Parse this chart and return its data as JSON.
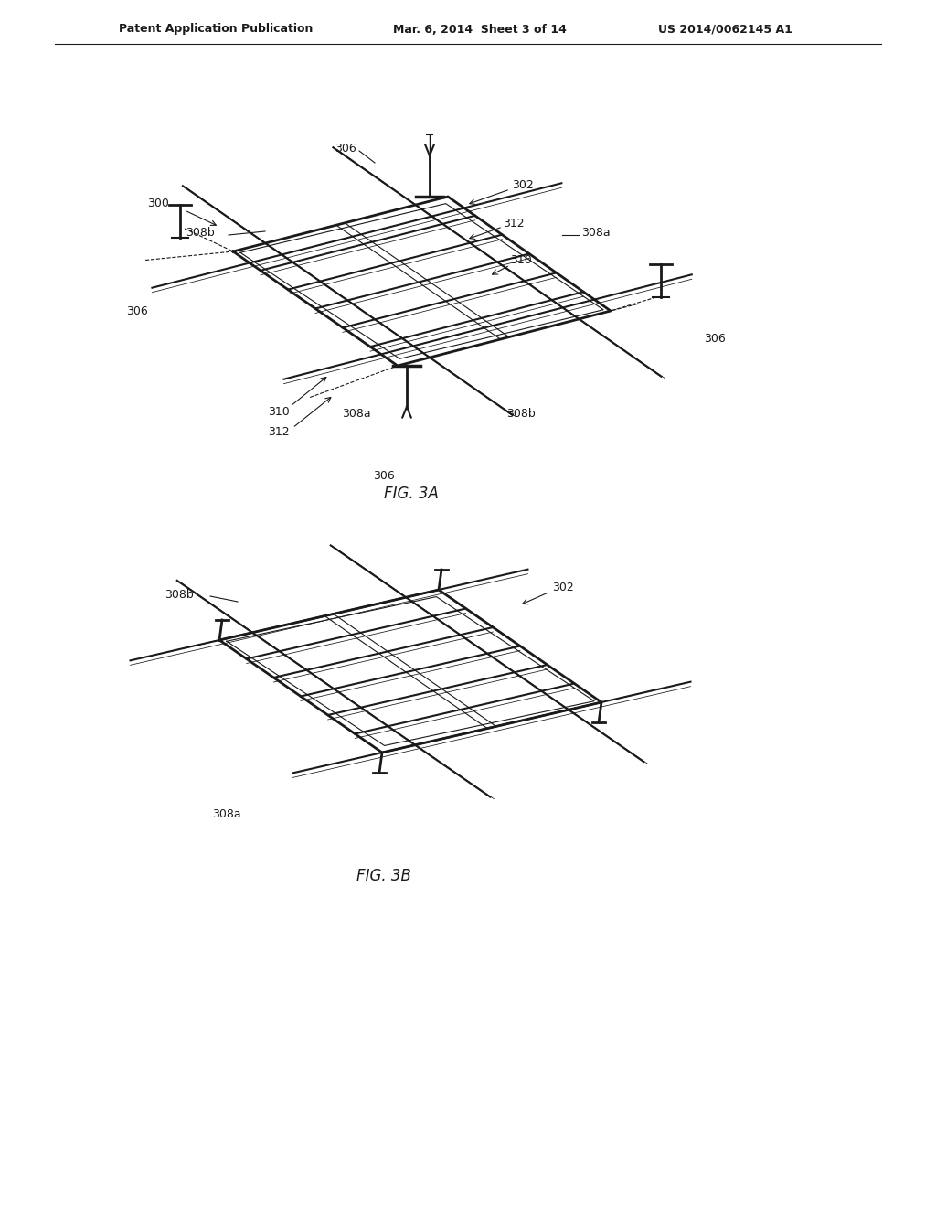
{
  "bg_color": "#ffffff",
  "header_left": "Patent Application Publication",
  "header_mid": "Mar. 6, 2014  Sheet 3 of 14",
  "header_right": "US 2014/0062145 A1",
  "fig3a_label": "FIG. 3A",
  "fig3b_label": "FIG. 3B",
  "line_color": "#1a1a1a",
  "label_color": "#1a1a1a",
  "label_fontsize": 9,
  "header_fontsize": 9
}
